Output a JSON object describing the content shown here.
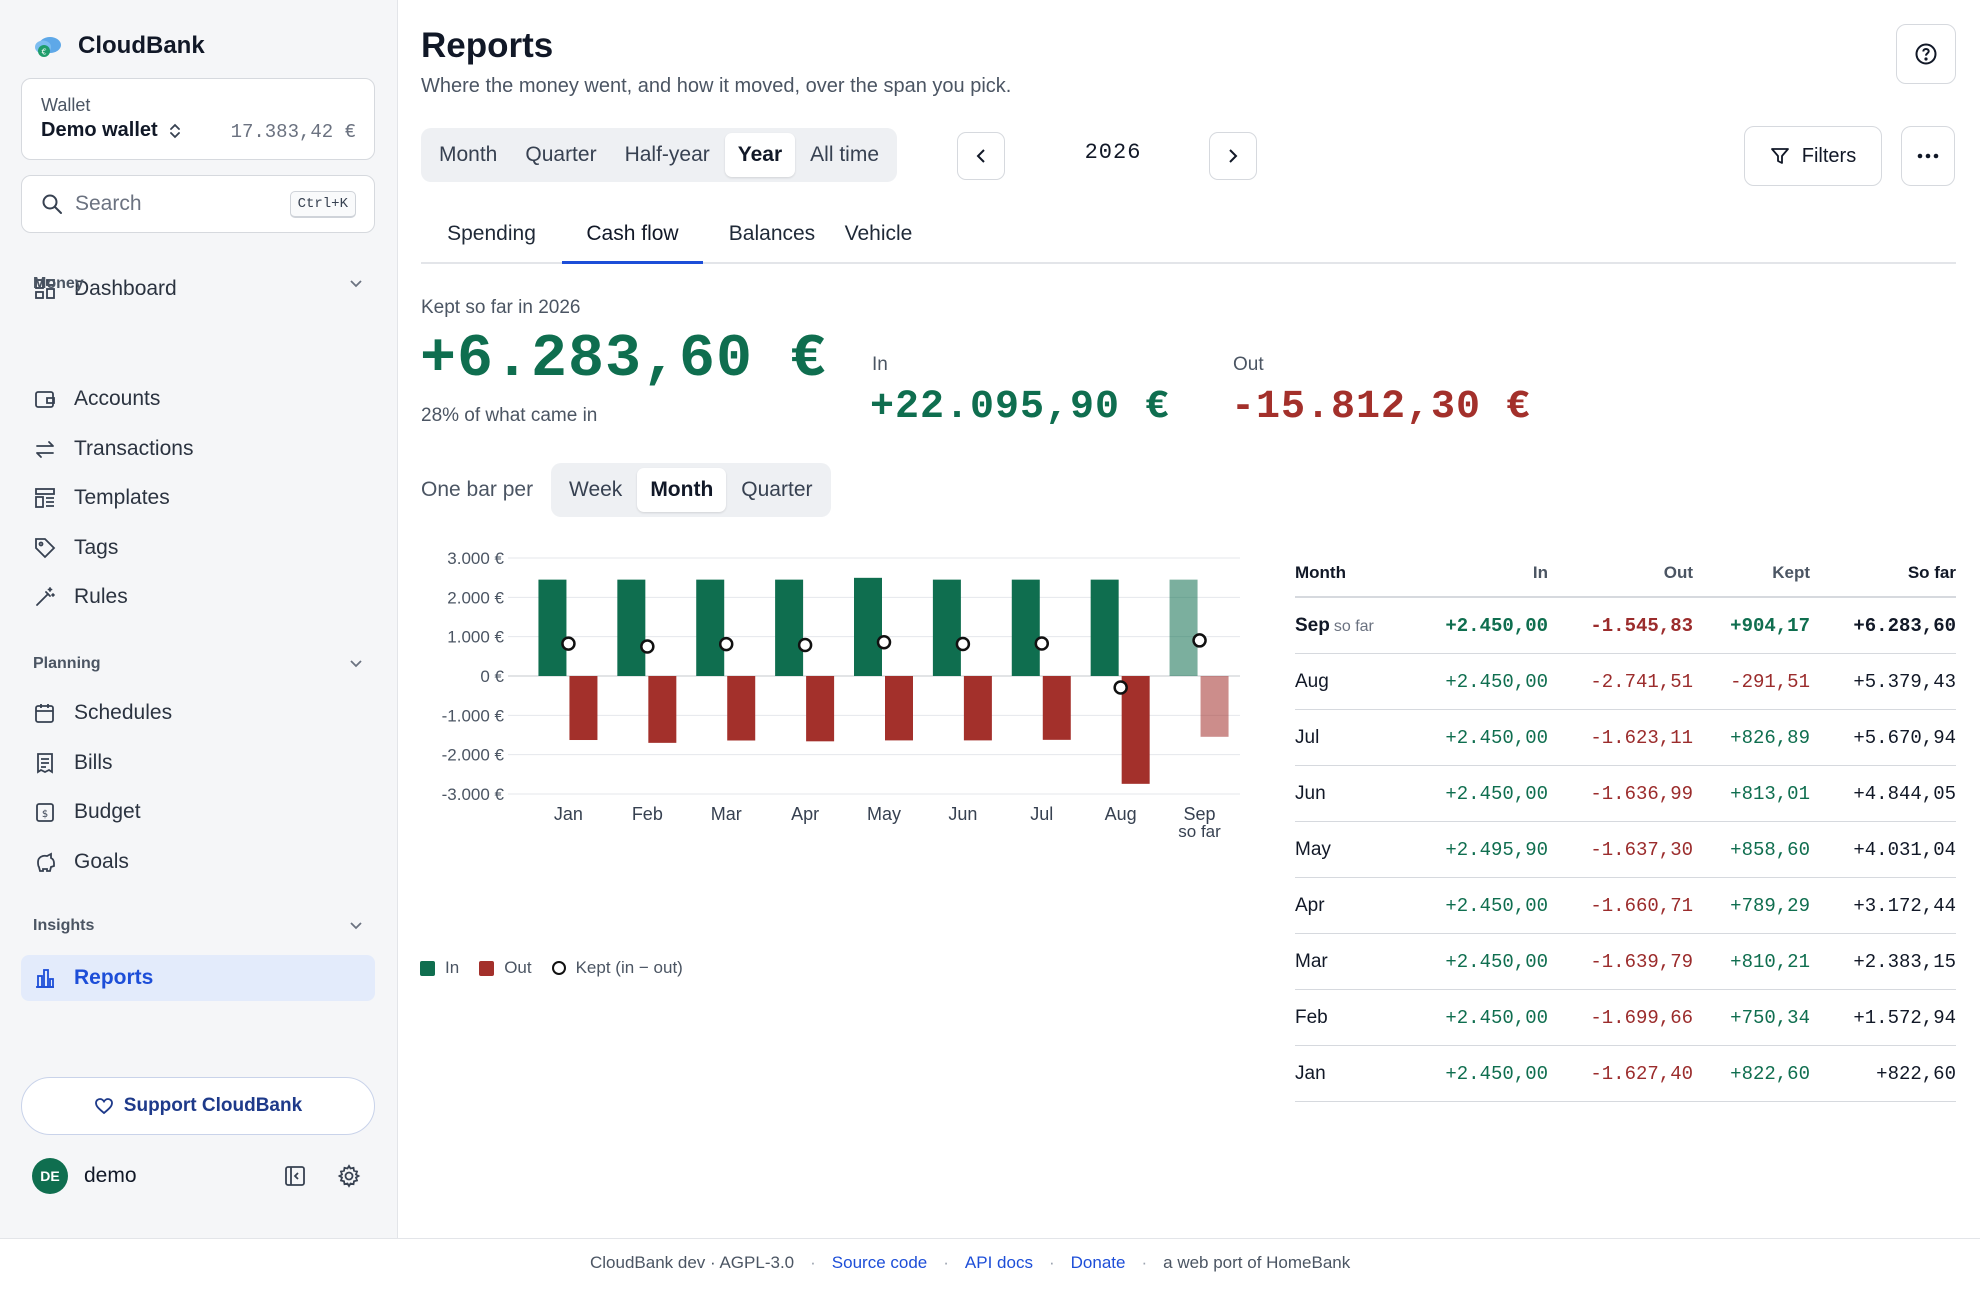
{
  "app": {
    "name": "CloudBank"
  },
  "wallet": {
    "label": "Wallet",
    "name": "Demo wallet",
    "balance": "17.383,42 €"
  },
  "search": {
    "placeholder": "Search",
    "shortcut": "Ctrl+K"
  },
  "sidebar": {
    "dashboard": "Dashboard",
    "sections": [
      {
        "title": "Money",
        "items": [
          "Accounts",
          "Transactions",
          "Templates",
          "Tags",
          "Rules"
        ]
      },
      {
        "title": "Planning",
        "items": [
          "Schedules",
          "Bills",
          "Budget",
          "Goals"
        ]
      },
      {
        "title": "Insights",
        "items": [
          "Reports"
        ]
      }
    ],
    "active": "Reports",
    "support": "Support CloudBank",
    "user": {
      "initials": "DE",
      "name": "demo"
    }
  },
  "header": {
    "title": "Reports",
    "subtitle": "Where the money went, and how it moved, over the span you pick."
  },
  "period": {
    "options": [
      "Month",
      "Quarter",
      "Half-year",
      "Year",
      "All time"
    ],
    "selected": "Year",
    "current": "2026"
  },
  "toolbar": {
    "filters": "Filters"
  },
  "tabs": {
    "items": [
      "Spending",
      "Cash flow",
      "Balances",
      "Vehicle"
    ],
    "selected": "Cash flow"
  },
  "summary": {
    "kept_label": "Kept so far in 2026",
    "kept_value": "+6.283,60 €",
    "kept_note": "28% of what came in",
    "in_label": "In",
    "in_value": "+22.095,90 €",
    "out_label": "Out",
    "out_value": "-15.812,30 €"
  },
  "bar_per": {
    "label": "One bar per",
    "options": [
      "Week",
      "Month",
      "Quarter"
    ],
    "selected": "Month"
  },
  "legend": {
    "in": "In",
    "out": "Out",
    "kept": "Kept (in − out)"
  },
  "colors": {
    "in": "#0f6e4f",
    "out": "#a3302b",
    "accent": "#1d4ed8"
  },
  "chart_data": {
    "type": "bar",
    "categories": [
      "Jan",
      "Feb",
      "Mar",
      "Apr",
      "May",
      "Jun",
      "Jul",
      "Aug",
      "Sep"
    ],
    "category_sublabels": [
      "",
      "",
      "",
      "",
      "",
      "",
      "",
      "",
      "so far"
    ],
    "series": [
      {
        "name": "In",
        "values": [
          2450.0,
          2450.0,
          2450.0,
          2450.0,
          2495.9,
          2450.0,
          2450.0,
          2450.0,
          2450.0
        ]
      },
      {
        "name": "Out",
        "values": [
          -1627.4,
          -1699.66,
          -1639.79,
          -1660.71,
          -1637.3,
          -1636.99,
          -1623.11,
          -2741.51,
          -1545.83
        ]
      },
      {
        "name": "Kept (in − out)",
        "values": [
          822.6,
          750.34,
          810.21,
          789.29,
          858.6,
          813.01,
          826.89,
          -291.51,
          904.17
        ]
      }
    ],
    "partial_last": true,
    "y_ticks": [
      3000,
      2000,
      1000,
      0,
      -1000,
      -2000,
      -3000
    ],
    "y_tick_labels": [
      "3.000 €",
      "2.000 €",
      "1.000 €",
      "0 €",
      "-1.000 €",
      "-2.000 €",
      "-3.000 €"
    ],
    "ylim": [
      -3000,
      3000
    ],
    "grid": true,
    "legend_position": "bottom-left"
  },
  "table": {
    "headers": [
      "Month",
      "In",
      "Out",
      "Kept",
      "So far"
    ],
    "rows": [
      {
        "month": "Sep",
        "tag": "so far",
        "in": "+2.450,00",
        "out": "-1.545,83",
        "kept": "+904,17",
        "so_far": "+6.283,60"
      },
      {
        "month": "Aug",
        "tag": "",
        "in": "+2.450,00",
        "out": "-2.741,51",
        "kept": "-291,51",
        "so_far": "+5.379,43"
      },
      {
        "month": "Jul",
        "tag": "",
        "in": "+2.450,00",
        "out": "-1.623,11",
        "kept": "+826,89",
        "so_far": "+5.670,94"
      },
      {
        "month": "Jun",
        "tag": "",
        "in": "+2.450,00",
        "out": "-1.636,99",
        "kept": "+813,01",
        "so_far": "+4.844,05"
      },
      {
        "month": "May",
        "tag": "",
        "in": "+2.495,90",
        "out": "-1.637,30",
        "kept": "+858,60",
        "so_far": "+4.031,04"
      },
      {
        "month": "Apr",
        "tag": "",
        "in": "+2.450,00",
        "out": "-1.660,71",
        "kept": "+789,29",
        "so_far": "+3.172,44"
      },
      {
        "month": "Mar",
        "tag": "",
        "in": "+2.450,00",
        "out": "-1.639,79",
        "kept": "+810,21",
        "so_far": "+2.383,15"
      },
      {
        "month": "Feb",
        "tag": "",
        "in": "+2.450,00",
        "out": "-1.699,66",
        "kept": "+750,34",
        "so_far": "+1.572,94"
      },
      {
        "month": "Jan",
        "tag": "",
        "in": "+2.450,00",
        "out": "-1.627,40",
        "kept": "+822,60",
        "so_far": "+822,60"
      }
    ]
  },
  "footer": {
    "text": "CloudBank dev · AGPL-3.0",
    "links": [
      "Source code",
      "API docs",
      "Donate"
    ],
    "tail": "a web port of HomeBank"
  }
}
